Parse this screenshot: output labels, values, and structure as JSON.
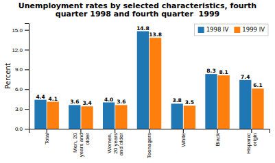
{
  "chart_data": {
    "type": "bar",
    "title": "Unemployment rates by selected characteristics, fourth\nquarter 1998 and fourth quarter  1999",
    "categories": [
      "Total",
      "Men, 20\nyears and\nolder",
      "Women,\n20 years\nand older",
      "Teenagers",
      "White",
      "Black",
      "Hispanic\norigin"
    ],
    "series": [
      {
        "name": "1998 IV",
        "values": [
          4.4,
          3.6,
          4.0,
          14.8,
          3.8,
          8.3,
          7.4
        ],
        "value_labels": [
          "4.4",
          "3.6",
          "4.0",
          "14.8",
          "3.8",
          "8.3",
          "7.4"
        ]
      },
      {
        "name": "1999 IV",
        "values": [
          4.1,
          3.4,
          3.6,
          13.8,
          3.5,
          8.1,
          6.1
        ],
        "value_labels": [
          "4.1",
          "3.4",
          "3.6",
          "13.8",
          "3.5",
          "8.1",
          "6.1"
        ]
      }
    ],
    "ylabel": "Percent",
    "ylim": [
      0,
      16.0
    ],
    "yticks": [
      {
        "value": 0.0,
        "label": "0.0"
      },
      {
        "value": 3.0,
        "label": "3.0"
      },
      {
        "value": 6.0,
        "label": "6.0"
      },
      {
        "value": 9.0,
        "label": "9.0"
      },
      {
        "value": 12.0,
        "label": "12.0"
      },
      {
        "value": 15.0,
        "label": "15.0"
      }
    ],
    "data_labels": true,
    "legend": "upper right",
    "grid": false
  }
}
